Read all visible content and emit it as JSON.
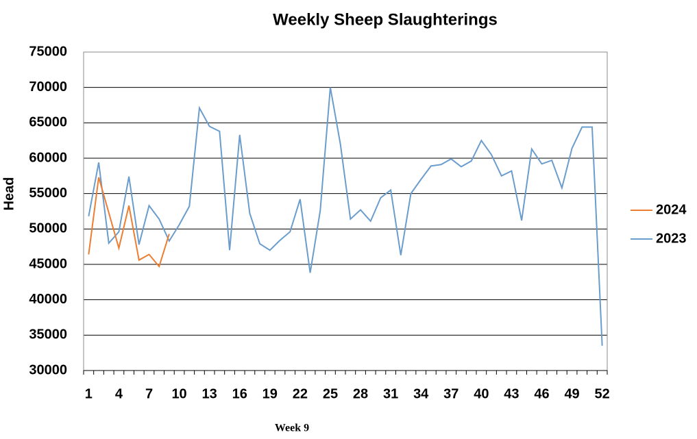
{
  "chart_data": {
    "type": "line",
    "title": "Weekly Sheep Slaughterings",
    "y_label": "Head",
    "annotation": "Week 9",
    "categories": [
      1,
      null,
      null,
      4,
      null,
      null,
      7,
      null,
      null,
      10,
      null,
      null,
      13,
      null,
      null,
      16,
      null,
      null,
      19,
      null,
      null,
      22,
      null,
      null,
      25,
      null,
      null,
      28,
      null,
      null,
      31,
      null,
      null,
      34,
      null,
      null,
      37,
      null,
      null,
      40,
      null,
      null,
      43,
      null,
      null,
      46,
      null,
      null,
      49,
      null,
      null,
      52
    ],
    "series": [
      {
        "name": "2024",
        "color": "#ed7d31",
        "values": [
          46400,
          57300,
          52300,
          47300,
          53300,
          45600,
          46400,
          44700,
          49300,
          null,
          null,
          null,
          null,
          null,
          null,
          null,
          null,
          null,
          null,
          null,
          null,
          null,
          null,
          null,
          null,
          null,
          null,
          null,
          null,
          null,
          null,
          null,
          null,
          null,
          null,
          null,
          null,
          null,
          null,
          null,
          null,
          null,
          null,
          null,
          null,
          null,
          null,
          null,
          null,
          null,
          null,
          null
        ]
      },
      {
        "name": "2023",
        "color": "#6a9ccc",
        "values": [
          51800,
          59400,
          48000,
          49600,
          57400,
          47800,
          53300,
          51400,
          48300,
          50600,
          53200,
          67100,
          64500,
          63800,
          47000,
          63300,
          52200,
          47900,
          47000,
          48400,
          49600,
          54200,
          43800,
          52600,
          70000,
          62000,
          51400,
          52700,
          51100,
          54400,
          55500,
          46300,
          55000,
          57000,
          58900,
          59100,
          59900,
          58800,
          59600,
          62500,
          60500,
          57500,
          58200,
          51200,
          61300,
          59200,
          59700,
          55800,
          61400,
          64400,
          64400,
          33500
        ]
      }
    ],
    "ylim": [
      30000,
      75000
    ],
    "yticks": [
      30000,
      35000,
      40000,
      45000,
      50000,
      55000,
      60000,
      65000,
      70000,
      75000
    ],
    "grid": true,
    "legend": "right"
  }
}
